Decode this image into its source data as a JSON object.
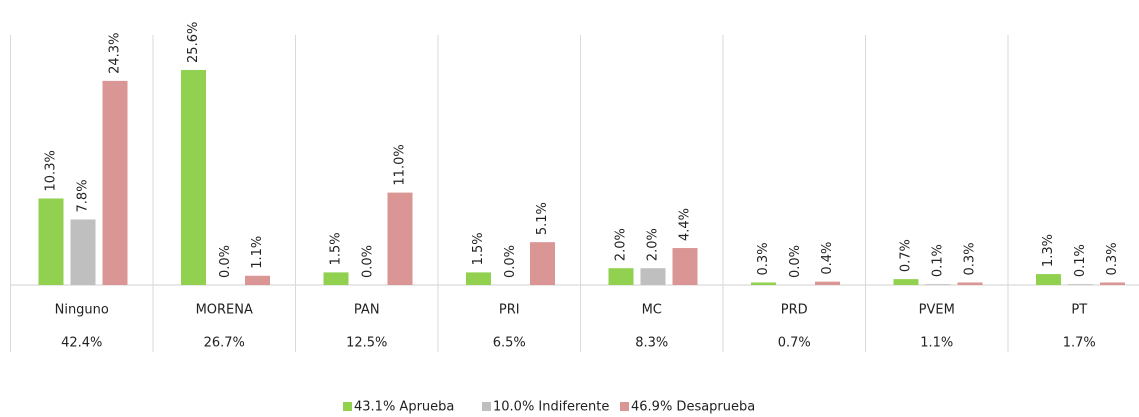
{
  "chart_data": {
    "type": "bar",
    "categories": [
      "Ninguno",
      "MORENA",
      "PAN",
      "PRI",
      "MC",
      "PRD",
      "PVEM",
      "PT"
    ],
    "totals": [
      42.4,
      26.7,
      12.5,
      6.5,
      8.3,
      0.7,
      1.1,
      1.7
    ],
    "total_labels": [
      "42.4%",
      "26.7%",
      "12.5%",
      "6.5%",
      "8.3%",
      "0.7%",
      "1.1%",
      "1.7%"
    ],
    "series": [
      {
        "name": "43.1% Aprueba",
        "color": "#92d050",
        "values": [
          10.3,
          25.6,
          1.5,
          1.5,
          2.0,
          0.3,
          0.7,
          1.3
        ],
        "value_labels": [
          "10.3%",
          "25.6%",
          "1.5%",
          "1.5%",
          "2.0%",
          "0.3%",
          "0.7%",
          "1.3%"
        ]
      },
      {
        "name": "10.0% Indiferente",
        "color": "#bfbfbf",
        "values": [
          7.8,
          0.0,
          0.0,
          0.0,
          2.0,
          0.0,
          0.1,
          0.1
        ],
        "value_labels": [
          "7.8%",
          "0.0%",
          "0.0%",
          "0.0%",
          "2.0%",
          "0.0%",
          "0.1%",
          "0.1%"
        ]
      },
      {
        "name": "46.9% Desaprueba",
        "color": "#da9694",
        "values": [
          24.3,
          1.1,
          11.0,
          5.1,
          4.4,
          0.4,
          0.3,
          0.3
        ],
        "value_labels": [
          "24.3%",
          "1.1%",
          "11.0%",
          "5.1%",
          "4.4%",
          "0.4%",
          "0.3%",
          "0.3%"
        ]
      }
    ]
  }
}
